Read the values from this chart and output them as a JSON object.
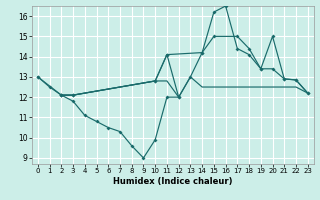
{
  "xlabel": "Humidex (Indice chaleur)",
  "bg_color": "#cceee8",
  "grid_color": "#ffffff",
  "line_color": "#1a6b6b",
  "xlim": [
    -0.5,
    23.5
  ],
  "ylim": [
    8.7,
    16.5
  ],
  "xticks": [
    0,
    1,
    2,
    3,
    4,
    5,
    6,
    7,
    8,
    9,
    10,
    11,
    12,
    13,
    14,
    15,
    16,
    17,
    18,
    19,
    20,
    21,
    22,
    23
  ],
  "yticks": [
    9,
    10,
    11,
    12,
    13,
    14,
    15,
    16
  ],
  "line1_x": [
    0,
    1,
    2,
    3,
    4,
    5,
    6,
    7,
    8,
    9,
    10,
    11,
    12
  ],
  "line1_y": [
    13.0,
    12.5,
    12.1,
    11.8,
    11.1,
    10.8,
    10.5,
    10.3,
    9.6,
    9.0,
    9.9,
    12.0,
    12.0
  ],
  "line2_x": [
    0,
    2,
    3,
    10,
    11,
    14,
    15,
    16,
    17,
    18,
    19,
    20,
    21,
    22,
    23
  ],
  "line2_y": [
    13.0,
    12.1,
    12.1,
    12.8,
    14.1,
    14.2,
    16.2,
    16.5,
    14.4,
    14.1,
    13.4,
    13.4,
    12.9,
    12.85,
    12.2
  ],
  "line3_x": [
    2,
    3,
    10,
    11,
    12,
    13,
    14,
    15,
    16,
    17,
    18,
    19,
    20,
    21,
    22,
    23
  ],
  "line3_y": [
    12.1,
    12.1,
    12.8,
    12.8,
    12.0,
    13.0,
    12.5,
    12.5,
    12.5,
    12.5,
    12.5,
    12.5,
    12.5,
    12.5,
    12.5,
    12.2
  ],
  "line4_x": [
    2,
    3,
    10,
    11,
    12,
    13,
    14,
    15,
    17,
    18,
    19,
    20,
    21,
    22,
    23
  ],
  "line4_y": [
    12.1,
    12.1,
    12.8,
    14.1,
    12.0,
    13.0,
    14.2,
    15.0,
    15.0,
    14.4,
    13.4,
    15.0,
    12.9,
    12.85,
    12.2
  ]
}
